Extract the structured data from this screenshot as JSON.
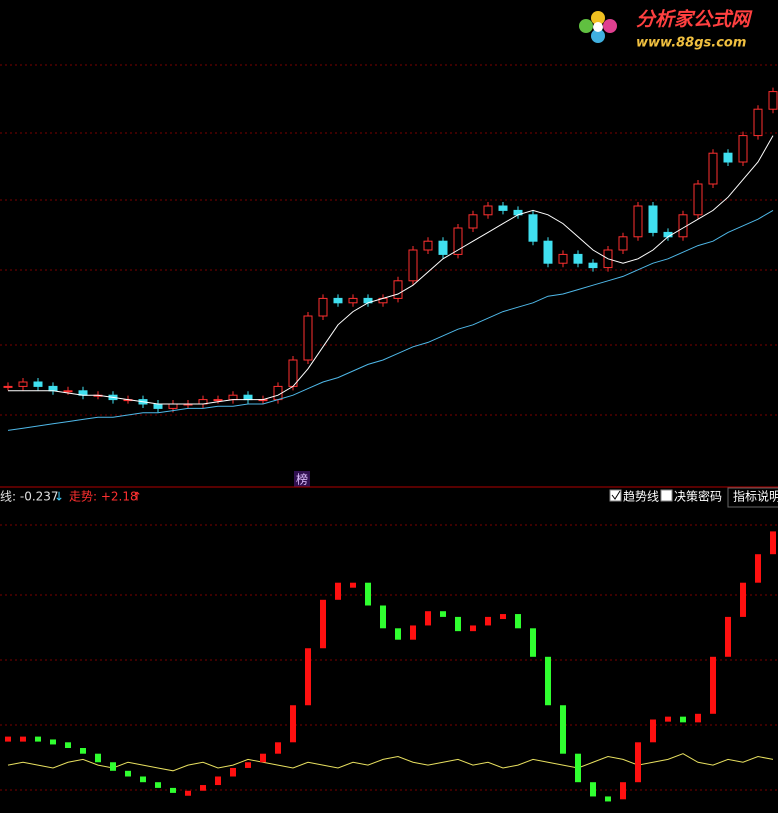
{
  "watermark": {
    "title": "分析家公式网",
    "url": "www.88gs.com"
  },
  "marker": "榜",
  "indicator_bar": {
    "line_label": "线: -0.237",
    "line_arrow": "↓",
    "trend_label": "走势: +2.18",
    "trend_arrow": "↑",
    "checkboxes": [
      "趋势线",
      "决策密码"
    ],
    "help": "指标说明"
  },
  "chart_data": [
    {
      "type": "candlestick",
      "ylim": [
        0,
        100
      ],
      "grid": true,
      "closes": [
        19,
        20,
        19,
        18,
        18,
        17,
        17,
        16,
        16,
        15,
        14,
        15,
        15,
        16,
        16,
        17,
        16,
        16,
        19,
        25,
        35,
        39,
        38,
        39,
        38,
        39,
        43,
        50,
        52,
        49,
        55,
        58,
        60,
        59,
        58,
        52,
        47,
        49,
        47,
        46,
        50,
        53,
        60,
        54,
        53,
        58,
        65,
        72,
        70,
        76,
        82,
        86
      ],
      "series": [
        {
          "color": "#ffffff",
          "values": [
            18,
            18,
            18,
            18,
            17.5,
            17,
            17,
            16.5,
            16,
            15.5,
            15,
            15,
            15,
            15,
            15.5,
            16,
            16,
            16,
            17,
            19,
            23,
            28,
            33,
            36,
            38,
            39,
            40,
            42,
            45,
            48,
            50,
            52,
            54,
            56,
            58,
            59,
            58,
            56,
            53,
            50,
            48,
            47,
            48,
            50,
            53,
            55,
            57,
            59,
            62,
            66,
            70,
            76
          ]
        },
        {
          "color": "#4fb8e8",
          "values": [
            9,
            9.5,
            10,
            10.5,
            11,
            11.5,
            12,
            12,
            12.5,
            13,
            13,
            13.5,
            14,
            14,
            14.5,
            14.5,
            15,
            15,
            16,
            17,
            18.5,
            20,
            21,
            22.5,
            24,
            25,
            26.5,
            28,
            29,
            30.5,
            32,
            33,
            34.5,
            36,
            37,
            38,
            39.5,
            40,
            41,
            42,
            43,
            44,
            45.5,
            47,
            48,
            49.5,
            51,
            52,
            54,
            55.5,
            57,
            59
          ]
        }
      ],
      "up_color": "#ff3030",
      "down_color": "#40e0f0"
    },
    {
      "type": "step",
      "ylim": [
        0,
        100
      ],
      "grid": true,
      "up_color": "#ff1010",
      "down_color": "#30ff30",
      "values": [
        24,
        24,
        23,
        22,
        20,
        18,
        15,
        12,
        10,
        8,
        6,
        5,
        5,
        7,
        10,
        13,
        15,
        18,
        22,
        35,
        55,
        72,
        78,
        78,
        70,
        62,
        58,
        63,
        68,
        66,
        61,
        63,
        66,
        67,
        62,
        52,
        35,
        18,
        8,
        3,
        2,
        8,
        22,
        30,
        31,
        29,
        32,
        52,
        66,
        78,
        88,
        96
      ],
      "series": [
        {
          "color": "#e8e060",
          "values": [
            14,
            15,
            14,
            13,
            15,
            16,
            14,
            13,
            15,
            14,
            13,
            12,
            14,
            15,
            13,
            14,
            16,
            15,
            14,
            13,
            15,
            14,
            13,
            15,
            14,
            16,
            17,
            15,
            14,
            15,
            16,
            14,
            15,
            13,
            14,
            16,
            15,
            14,
            13,
            15,
            17,
            16,
            14,
            15,
            16,
            18,
            15,
            14,
            16,
            15,
            17,
            16
          ]
        }
      ]
    }
  ]
}
